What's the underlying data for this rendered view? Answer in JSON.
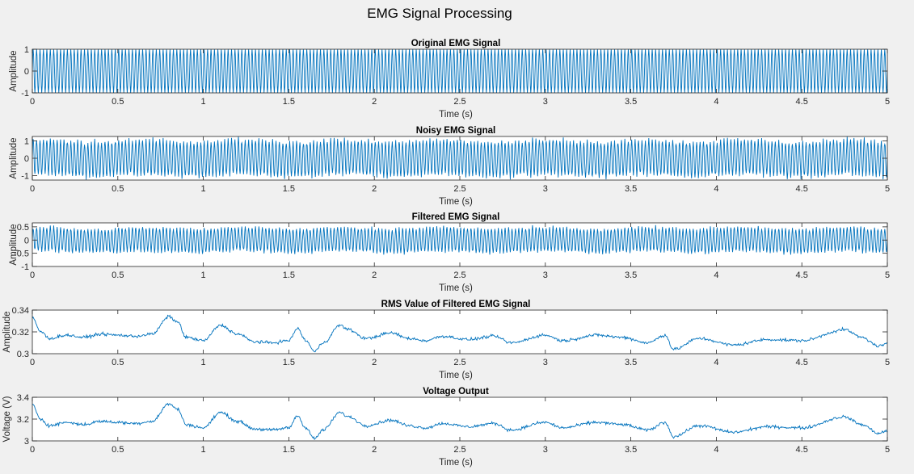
{
  "figure": {
    "title": "EMG Signal Processing",
    "background": "#f0f0f0",
    "line_color": "#0072bd",
    "axes_color": "#262626"
  },
  "chart_data": [
    {
      "type": "line",
      "title": "Original EMG Signal",
      "xlabel": "Time (s)",
      "ylabel": "Amplitude",
      "xlim": [
        0,
        5
      ],
      "ylim": [
        -1,
        1
      ],
      "xticks": [
        0,
        0.5,
        1,
        1.5,
        2,
        2.5,
        3,
        3.5,
        4,
        4.5,
        5
      ],
      "xtick_labels": [
        "0",
        "0.5",
        "1",
        "1.5",
        "2",
        "2.5",
        "3",
        "3.5",
        "4",
        "4.5",
        "5"
      ],
      "yticks": [
        -1,
        0,
        1
      ],
      "ytick_labels": [
        "-1",
        "0",
        "1"
      ],
      "series": [
        {
          "kind": "sinusoid",
          "amplitude": 1.0,
          "offset": 0,
          "cycles_per_second": 50,
          "noise": 0,
          "samples": 2000
        }
      ]
    },
    {
      "type": "line",
      "title": "Noisy EMG Signal",
      "xlabel": "Time (s)",
      "ylabel": "Amplitude",
      "xlim": [
        0,
        5
      ],
      "ylim": [
        -1.25,
        1.25
      ],
      "xticks": [
        0,
        0.5,
        1,
        1.5,
        2,
        2.5,
        3,
        3.5,
        4,
        4.5,
        5
      ],
      "xtick_labels": [
        "0",
        "0.5",
        "1",
        "1.5",
        "2",
        "2.5",
        "3",
        "3.5",
        "4",
        "4.5",
        "5"
      ],
      "yticks": [
        -1,
        0,
        1
      ],
      "ytick_labels": [
        "-1",
        "0",
        "1"
      ],
      "series": [
        {
          "kind": "sinusoid",
          "amplitude": 1.0,
          "offset": 0,
          "cycles_per_second": 50,
          "noise": 0.12,
          "samples": 2000
        }
      ]
    },
    {
      "type": "line",
      "title": "Filtered EMG Signal",
      "xlabel": "Time (s)",
      "ylabel": "Amplitude",
      "xlim": [
        0,
        5
      ],
      "ylim": [
        -1,
        0.65
      ],
      "xticks": [
        0,
        0.5,
        1,
        1.5,
        2,
        2.5,
        3,
        3.5,
        4,
        4.5,
        5
      ],
      "xtick_labels": [
        "0",
        "0.5",
        "1",
        "1.5",
        "2",
        "2.5",
        "3",
        "3.5",
        "4",
        "4.5",
        "5"
      ],
      "yticks": [
        -1,
        -0.5,
        0,
        0.5
      ],
      "ytick_labels": [
        "-1",
        "-0.5",
        "0",
        "0.5"
      ],
      "series": [
        {
          "kind": "sinusoid",
          "amplitude": 0.45,
          "offset": 0,
          "cycles_per_second": 50,
          "noise": 0.06,
          "samples": 2000
        }
      ]
    },
    {
      "type": "line",
      "title": "RMS Value of Filtered EMG Signal",
      "xlabel": "Time (s)",
      "ylabel": "Amplitude",
      "xlim": [
        0,
        5
      ],
      "ylim": [
        0.3,
        0.34
      ],
      "xticks": [
        0,
        0.5,
        1,
        1.5,
        2,
        2.5,
        3,
        3.5,
        4,
        4.5,
        5
      ],
      "xtick_labels": [
        "0",
        "0.5",
        "1",
        "1.5",
        "2",
        "2.5",
        "3",
        "3.5",
        "4",
        "4.5",
        "5"
      ],
      "yticks": [
        0.3,
        0.32,
        0.34
      ],
      "ytick_labels": [
        "0.3",
        "0.32",
        "0.34"
      ],
      "series": [
        {
          "kind": "curve",
          "jitter": 0.0012,
          "samples": 1200,
          "points": [
            [
              0,
              0.333
            ],
            [
              0.05,
              0.32
            ],
            [
              0.1,
              0.314
            ],
            [
              0.2,
              0.317
            ],
            [
              0.3,
              0.315
            ],
            [
              0.4,
              0.318
            ],
            [
              0.5,
              0.317
            ],
            [
              0.6,
              0.316
            ],
            [
              0.7,
              0.318
            ],
            [
              0.8,
              0.334
            ],
            [
              0.85,
              0.329
            ],
            [
              0.9,
              0.315
            ],
            [
              1.0,
              0.312
            ],
            [
              1.1,
              0.326
            ],
            [
              1.2,
              0.318
            ],
            [
              1.3,
              0.311
            ],
            [
              1.4,
              0.31
            ],
            [
              1.5,
              0.312
            ],
            [
              1.55,
              0.323
            ],
            [
              1.6,
              0.312
            ],
            [
              1.65,
              0.302
            ],
            [
              1.7,
              0.31
            ],
            [
              1.8,
              0.326
            ],
            [
              1.85,
              0.322
            ],
            [
              1.95,
              0.314
            ],
            [
              2.1,
              0.319
            ],
            [
              2.2,
              0.314
            ],
            [
              2.3,
              0.312
            ],
            [
              2.4,
              0.316
            ],
            [
              2.55,
              0.313
            ],
            [
              2.7,
              0.316
            ],
            [
              2.8,
              0.31
            ],
            [
              3.0,
              0.317
            ],
            [
              3.1,
              0.312
            ],
            [
              3.3,
              0.317
            ],
            [
              3.45,
              0.315
            ],
            [
              3.6,
              0.31
            ],
            [
              3.7,
              0.317
            ],
            [
              3.75,
              0.304
            ],
            [
              3.9,
              0.314
            ],
            [
              4.1,
              0.308
            ],
            [
              4.3,
              0.313
            ],
            [
              4.5,
              0.312
            ],
            [
              4.75,
              0.322
            ],
            [
              4.85,
              0.315
            ],
            [
              4.95,
              0.307
            ],
            [
              5.0,
              0.309
            ]
          ]
        }
      ]
    },
    {
      "type": "line",
      "title": "Voltage Output",
      "xlabel": "Time (s)",
      "ylabel": "Voltage (V)",
      "xlim": [
        0,
        5
      ],
      "ylim": [
        3,
        3.4
      ],
      "xticks": [
        0,
        0.5,
        1,
        1.5,
        2,
        2.5,
        3,
        3.5,
        4,
        4.5,
        5
      ],
      "xtick_labels": [
        "0",
        "0.5",
        "1",
        "1.5",
        "2",
        "2.5",
        "3",
        "3.5",
        "4",
        "4.5",
        "5"
      ],
      "yticks": [
        3,
        3.2,
        3.4
      ],
      "ytick_labels": [
        "3",
        "3.2",
        "3.4"
      ],
      "series": [
        {
          "kind": "curve",
          "jitter": 0.012,
          "samples": 1200,
          "points": [
            [
              0,
              3.33
            ],
            [
              0.05,
              3.2
            ],
            [
              0.1,
              3.14
            ],
            [
              0.2,
              3.17
            ],
            [
              0.3,
              3.15
            ],
            [
              0.4,
              3.18
            ],
            [
              0.5,
              3.17
            ],
            [
              0.6,
              3.16
            ],
            [
              0.7,
              3.18
            ],
            [
              0.8,
              3.34
            ],
            [
              0.85,
              3.29
            ],
            [
              0.9,
              3.15
            ],
            [
              1.0,
              3.12
            ],
            [
              1.1,
              3.26
            ],
            [
              1.2,
              3.18
            ],
            [
              1.3,
              3.11
            ],
            [
              1.4,
              3.1
            ],
            [
              1.5,
              3.12
            ],
            [
              1.55,
              3.23
            ],
            [
              1.6,
              3.12
            ],
            [
              1.65,
              3.02
            ],
            [
              1.7,
              3.1
            ],
            [
              1.8,
              3.26
            ],
            [
              1.85,
              3.22
            ],
            [
              1.95,
              3.14
            ],
            [
              2.1,
              3.19
            ],
            [
              2.2,
              3.14
            ],
            [
              2.3,
              3.12
            ],
            [
              2.4,
              3.16
            ],
            [
              2.55,
              3.13
            ],
            [
              2.7,
              3.16
            ],
            [
              2.8,
              3.1
            ],
            [
              3.0,
              3.17
            ],
            [
              3.1,
              3.12
            ],
            [
              3.3,
              3.17
            ],
            [
              3.45,
              3.15
            ],
            [
              3.6,
              3.1
            ],
            [
              3.7,
              3.17
            ],
            [
              3.75,
              3.04
            ],
            [
              3.9,
              3.14
            ],
            [
              4.1,
              3.08
            ],
            [
              4.3,
              3.13
            ],
            [
              4.5,
              3.12
            ],
            [
              4.75,
              3.22
            ],
            [
              4.85,
              3.15
            ],
            [
              4.95,
              3.07
            ],
            [
              5.0,
              3.09
            ]
          ]
        }
      ]
    }
  ]
}
